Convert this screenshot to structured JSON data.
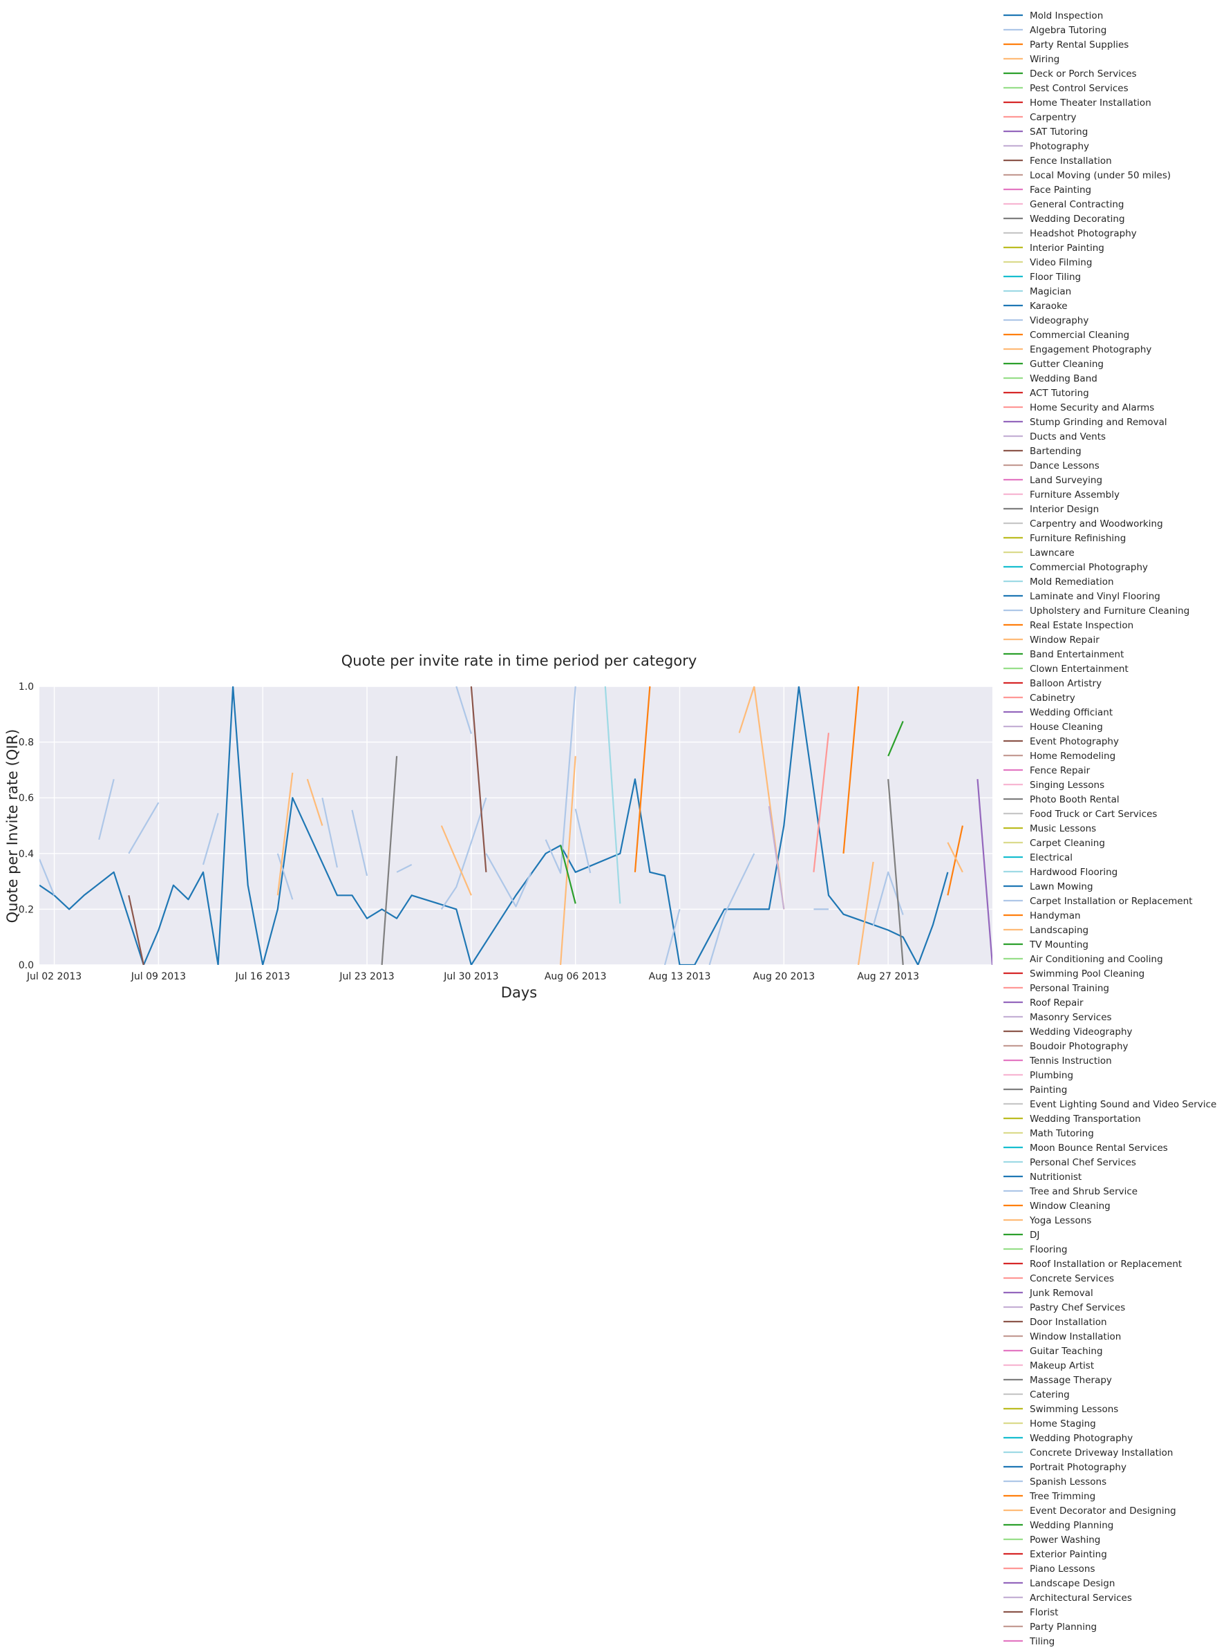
{
  "chart_data": {
    "type": "line",
    "title": "Quote per invite rate in time period per category",
    "xlabel": "Days",
    "ylabel": "Quote per Invite rate (QIR)",
    "xlim": [
      "2013-07-01",
      "2013-09-03"
    ],
    "ylim": [
      0,
      1.0
    ],
    "x_ticks": [
      "2013-07-02",
      "2013-07-09",
      "2013-07-16",
      "2013-07-23",
      "2013-07-30",
      "2013-08-06",
      "2013-08-13",
      "2013-08-20",
      "2013-08-27"
    ],
    "x_tick_labels": [
      "Jul 02 2013",
      "Jul 09 2013",
      "Jul 16 2013",
      "Jul 23 2013",
      "Jul 30 2013",
      "Aug 06 2013",
      "Aug 13 2013",
      "Aug 20 2013",
      "Aug 27 2013"
    ],
    "y_ticks": [
      0.0,
      0.2,
      0.4,
      0.6,
      0.8,
      1.0
    ],
    "y_tick_labels": [
      "0.0",
      "0.2",
      "0.4",
      "0.6",
      "0.8",
      "1.0"
    ],
    "grid": true,
    "legend_position": "outside-right",
    "background": "#eaeaf2",
    "palette": [
      "#1f77b4",
      "#aec7e8",
      "#ff7f0e",
      "#ffbb78",
      "#2ca02c",
      "#98df8a",
      "#d62728",
      "#ff9896",
      "#9467bd",
      "#c5b0d5",
      "#8c564b",
      "#c49c94",
      "#e377c2",
      "#f7b6d2",
      "#7f7f7f",
      "#c7c7c7",
      "#bcbd22",
      "#dbdb8d",
      "#17becf",
      "#9edae5"
    ],
    "legend": [
      "Mold Inspection",
      "Algebra Tutoring",
      "Party Rental Supplies",
      "Wiring",
      "Deck or Porch Services",
      "Pest Control Services",
      "Home Theater Installation",
      "Carpentry",
      "SAT Tutoring",
      "Photography",
      "Fence Installation",
      "Local Moving (under 50 miles)",
      "Face Painting",
      "General Contracting",
      "Wedding Decorating",
      "Headshot Photography",
      "Interior Painting",
      "Video Filming",
      "Floor Tiling",
      "Magician",
      "Karaoke",
      "Videography",
      "Commercial Cleaning",
      "Engagement Photography",
      "Gutter Cleaning",
      "Wedding Band",
      "ACT Tutoring",
      "Home Security and Alarms",
      "Stump Grinding and Removal",
      "Ducts and Vents",
      "Bartending",
      "Dance Lessons",
      "Land Surveying",
      "Furniture Assembly",
      "Interior Design",
      "Carpentry and Woodworking",
      "Furniture Refinishing",
      "Lawncare",
      "Commercial Photography",
      "Mold Remediation",
      "Laminate and Vinyl Flooring",
      "Upholstery and Furniture Cleaning",
      "Real Estate Inspection",
      "Window Repair",
      "Band Entertainment",
      "Clown Entertainment",
      "Balloon Artistry",
      "Cabinetry",
      "Wedding Officiant",
      "House Cleaning",
      "Event Photography",
      "Home Remodeling",
      "Fence Repair",
      "Singing Lessons",
      "Photo Booth Rental",
      "Food Truck or Cart Services",
      "Music Lessons",
      "Carpet Cleaning",
      "Electrical",
      "Hardwood Flooring",
      "Lawn Mowing",
      "Carpet Installation or Replacement",
      "Handyman",
      "Landscaping",
      "TV Mounting",
      "Air Conditioning and Cooling",
      "Swimming Pool Cleaning",
      "Personal Training",
      "Roof Repair",
      "Masonry Services",
      "Wedding Videography",
      "Boudoir Photography",
      "Tennis Instruction",
      "Plumbing",
      "Painting",
      "Event Lighting Sound and Video Services",
      "Wedding Transportation",
      "Math Tutoring",
      "Moon Bounce Rental Services",
      "Personal Chef Services",
      "Nutritionist",
      "Tree and Shrub Service",
      "Window Cleaning",
      "Yoga Lessons",
      "DJ",
      "Flooring",
      "Roof Installation or Replacement",
      "Concrete Services",
      "Junk Removal",
      "Pastry Chef Services",
      "Door Installation",
      "Window Installation",
      "Guitar Teaching",
      "Makeup Artist",
      "Massage Therapy",
      "Catering",
      "Swimming Lessons",
      "Home Staging",
      "Wedding Photography",
      "Concrete Driveway Installation",
      "Portrait Photography",
      "Spanish Lessons",
      "Tree Trimming",
      "Event Decorator and Designing",
      "Wedding Planning",
      "Power Washing",
      "Exterior Painting",
      "Piano Lessons",
      "Landscape Design",
      "Architectural Services",
      "Florist",
      "Party Planning",
      "Tiling"
    ],
    "series": [
      {
        "name": "Mold Inspection",
        "color": "#1f77b4",
        "points": [
          [
            "2013-07-01",
            0.286
          ],
          [
            "2013-07-02",
            0.25
          ],
          [
            "2013-07-03",
            0.2
          ],
          [
            "2013-07-04",
            0.25
          ],
          [
            "2013-07-06",
            0.333
          ],
          [
            "2013-07-08",
            0.0
          ],
          [
            "2013-07-09",
            0.125
          ],
          [
            "2013-07-10",
            0.286
          ],
          [
            "2013-07-11",
            0.235
          ],
          [
            "2013-07-12",
            0.333
          ],
          [
            "2013-07-13",
            0.0
          ],
          [
            "2013-07-14",
            1.0
          ],
          [
            "2013-07-15",
            0.286
          ],
          [
            "2013-07-16",
            0.0
          ],
          [
            "2013-07-17",
            0.2
          ],
          [
            "2013-07-18",
            0.6
          ],
          [
            "2013-07-21",
            0.25
          ],
          [
            "2013-07-22",
            0.25
          ],
          [
            "2013-07-23",
            0.167
          ],
          [
            "2013-07-24",
            0.2
          ],
          [
            "2013-07-25",
            0.167
          ],
          [
            "2013-07-26",
            0.25
          ],
          [
            "2013-07-29",
            0.2
          ],
          [
            "2013-07-30",
            0.0
          ],
          [
            "2013-08-02",
            0.25
          ],
          [
            "2013-08-04",
            0.4
          ],
          [
            "2013-08-05",
            0.429
          ],
          [
            "2013-08-06",
            0.333
          ],
          [
            "2013-08-09",
            0.4
          ],
          [
            "2013-08-10",
            0.667
          ],
          [
            "2013-08-11",
            0.333
          ],
          [
            "2013-08-12",
            0.32
          ],
          [
            "2013-08-13",
            0.0
          ],
          [
            "2013-08-14",
            0.0
          ],
          [
            "2013-08-16",
            0.2
          ],
          [
            "2013-08-19",
            0.2
          ],
          [
            "2013-08-20",
            0.5
          ],
          [
            "2013-08-21",
            1.0
          ],
          [
            "2013-08-23",
            0.25
          ],
          [
            "2013-08-24",
            0.182
          ],
          [
            "2013-08-27",
            0.125
          ],
          [
            "2013-08-28",
            0.1
          ],
          [
            "2013-08-29",
            0.0
          ],
          [
            "2013-08-30",
            0.143
          ],
          [
            "2013-08-31",
            0.333
          ]
        ]
      },
      {
        "name": "Algebra Tutoring",
        "color": "#aec7e8",
        "points": [
          [
            "2013-07-01",
            0.38
          ],
          [
            "2013-07-02",
            0.25
          ]
        ]
      },
      {
        "name": "Algebra Tutoring",
        "color": "#aec7e8",
        "points": [
          [
            "2013-07-05",
            0.45
          ],
          [
            "2013-07-06",
            0.667
          ]
        ]
      },
      {
        "name": "Algebra Tutoring",
        "color": "#aec7e8",
        "points": [
          [
            "2013-07-07",
            0.4
          ],
          [
            "2013-07-09",
            0.583
          ]
        ]
      },
      {
        "name": "Algebra Tutoring",
        "color": "#aec7e8",
        "points": [
          [
            "2013-07-12",
            0.36
          ],
          [
            "2013-07-13",
            0.545
          ]
        ]
      },
      {
        "name": "Algebra Tutoring",
        "color": "#aec7e8",
        "points": [
          [
            "2013-07-17",
            0.4
          ],
          [
            "2013-07-18",
            0.235
          ]
        ]
      },
      {
        "name": "Algebra Tutoring",
        "color": "#aec7e8",
        "points": [
          [
            "2013-07-20",
            0.6
          ],
          [
            "2013-07-21",
            0.35
          ]
        ]
      },
      {
        "name": "Algebra Tutoring",
        "color": "#aec7e8",
        "points": [
          [
            "2013-07-22",
            0.556
          ],
          [
            "2013-07-23",
            0.32
          ]
        ]
      },
      {
        "name": "Algebra Tutoring",
        "color": "#aec7e8",
        "points": [
          [
            "2013-07-25",
            0.333
          ],
          [
            "2013-07-26",
            0.36
          ]
        ]
      },
      {
        "name": "Algebra Tutoring",
        "color": "#aec7e8",
        "points": [
          [
            "2013-07-28",
            0.2
          ],
          [
            "2013-07-29",
            0.28
          ],
          [
            "2013-07-31",
            0.6
          ]
        ]
      },
      {
        "name": "Algebra Tutoring",
        "color": "#aec7e8",
        "points": [
          [
            "2013-07-29",
            1.0
          ],
          [
            "2013-07-30",
            0.83
          ]
        ]
      },
      {
        "name": "Algebra Tutoring",
        "color": "#aec7e8",
        "points": [
          [
            "2013-07-31",
            0.4
          ],
          [
            "2013-08-02",
            0.21
          ],
          [
            "2013-08-03",
            0.33
          ]
        ]
      },
      {
        "name": "Algebra Tutoring",
        "color": "#aec7e8",
        "points": [
          [
            "2013-08-04",
            0.45
          ],
          [
            "2013-08-05",
            0.33
          ],
          [
            "2013-08-06",
            1.0
          ]
        ]
      },
      {
        "name": "Algebra Tutoring",
        "color": "#aec7e8",
        "points": [
          [
            "2013-08-06",
            0.56
          ],
          [
            "2013-08-07",
            0.33
          ]
        ]
      },
      {
        "name": "Algebra Tutoring",
        "color": "#aec7e8",
        "points": [
          [
            "2013-08-12",
            0.0
          ],
          [
            "2013-08-13",
            0.2
          ]
        ]
      },
      {
        "name": "Algebra Tutoring",
        "color": "#aec7e8",
        "points": [
          [
            "2013-08-15",
            0.0
          ],
          [
            "2013-08-16",
            0.18
          ],
          [
            "2013-08-18",
            0.4
          ]
        ]
      },
      {
        "name": "Algebra Tutoring",
        "color": "#aec7e8",
        "points": [
          [
            "2013-08-22",
            0.2
          ],
          [
            "2013-08-23",
            0.2
          ]
        ]
      },
      {
        "name": "Algebra Tutoring",
        "color": "#aec7e8",
        "points": [
          [
            "2013-08-26",
            0.14
          ],
          [
            "2013-08-27",
            0.333
          ],
          [
            "2013-08-28",
            0.18
          ]
        ]
      },
      {
        "name": "Party Rental Supplies",
        "color": "#ff7f0e",
        "points": [
          [
            "2013-08-10",
            0.333
          ],
          [
            "2013-08-11",
            1.0
          ]
        ]
      },
      {
        "name": "Party Rental Supplies",
        "color": "#ff7f0e",
        "points": [
          [
            "2013-08-24",
            0.4
          ],
          [
            "2013-08-25",
            1.0
          ]
        ]
      },
      {
        "name": "Party Rental Supplies",
        "color": "#ff7f0e",
        "points": [
          [
            "2013-08-31",
            0.25
          ],
          [
            "2013-09-01",
            0.5
          ]
        ]
      },
      {
        "name": "Wiring",
        "color": "#ffbb78",
        "points": [
          [
            "2013-07-17",
            0.25
          ],
          [
            "2013-07-18",
            0.69
          ]
        ]
      },
      {
        "name": "Wiring",
        "color": "#ffbb78",
        "points": [
          [
            "2013-07-19",
            0.667
          ],
          [
            "2013-07-20",
            0.5
          ]
        ]
      },
      {
        "name": "Wiring",
        "color": "#ffbb78",
        "points": [
          [
            "2013-07-28",
            0.5
          ],
          [
            "2013-07-30",
            0.25
          ]
        ]
      },
      {
        "name": "Wiring",
        "color": "#ffbb78",
        "points": [
          [
            "2013-08-05",
            0.0
          ],
          [
            "2013-08-06",
            0.75
          ]
        ]
      },
      {
        "name": "Wiring",
        "color": "#ffbb78",
        "points": [
          [
            "2013-08-17",
            0.833
          ],
          [
            "2013-08-18",
            1.0
          ],
          [
            "2013-08-20",
            0.2
          ]
        ]
      },
      {
        "name": "Wiring",
        "color": "#ffbb78",
        "points": [
          [
            "2013-08-25",
            0.0
          ],
          [
            "2013-08-26",
            0.37
          ]
        ]
      },
      {
        "name": "Wiring",
        "color": "#ffbb78",
        "points": [
          [
            "2013-08-31",
            0.44
          ],
          [
            "2013-09-01",
            0.333
          ]
        ]
      },
      {
        "name": "Deck or Porch Services",
        "color": "#2ca02c",
        "points": [
          [
            "2013-08-05",
            0.43
          ],
          [
            "2013-08-06",
            0.22
          ]
        ]
      },
      {
        "name": "Deck or Porch Services",
        "color": "#2ca02c",
        "points": [
          [
            "2013-08-27",
            0.75
          ],
          [
            "2013-08-28",
            0.875
          ]
        ]
      },
      {
        "name": "Home Security and Alarms",
        "color": "#ff9896",
        "points": [
          [
            "2013-08-22",
            0.333
          ],
          [
            "2013-08-23",
            0.833
          ]
        ]
      },
      {
        "name": "Mold Remediation",
        "color": "#9edae5",
        "points": [
          [
            "2013-08-08",
            1.0
          ],
          [
            "2013-08-09",
            0.22
          ]
        ]
      },
      {
        "name": "Fence Installation",
        "color": "#8c564b",
        "points": [
          [
            "2013-07-07",
            0.25
          ],
          [
            "2013-07-08",
            0.0
          ]
        ]
      },
      {
        "name": "Fence Installation",
        "color": "#8c564b",
        "points": [
          [
            "2013-07-30",
            1.0
          ],
          [
            "2013-07-31",
            0.333
          ]
        ]
      },
      {
        "name": "Photography",
        "color": "#c5b0d5",
        "points": [
          [
            "2013-08-19",
            0.57
          ],
          [
            "2013-08-20",
            0.2
          ]
        ]
      },
      {
        "name": "Wedding Decorating",
        "color": "#7f7f7f",
        "points": [
          [
            "2013-07-24",
            0.0
          ],
          [
            "2013-07-25",
            0.75
          ]
        ]
      },
      {
        "name": "Wedding Decorating",
        "color": "#7f7f7f",
        "points": [
          [
            "2013-08-27",
            0.667
          ],
          [
            "2013-08-28",
            0.0
          ]
        ]
      },
      {
        "name": "SAT Tutoring",
        "color": "#9467bd",
        "points": [
          [
            "2013-09-02",
            0.667
          ],
          [
            "2013-09-03",
            0.0
          ]
        ]
      }
    ]
  }
}
